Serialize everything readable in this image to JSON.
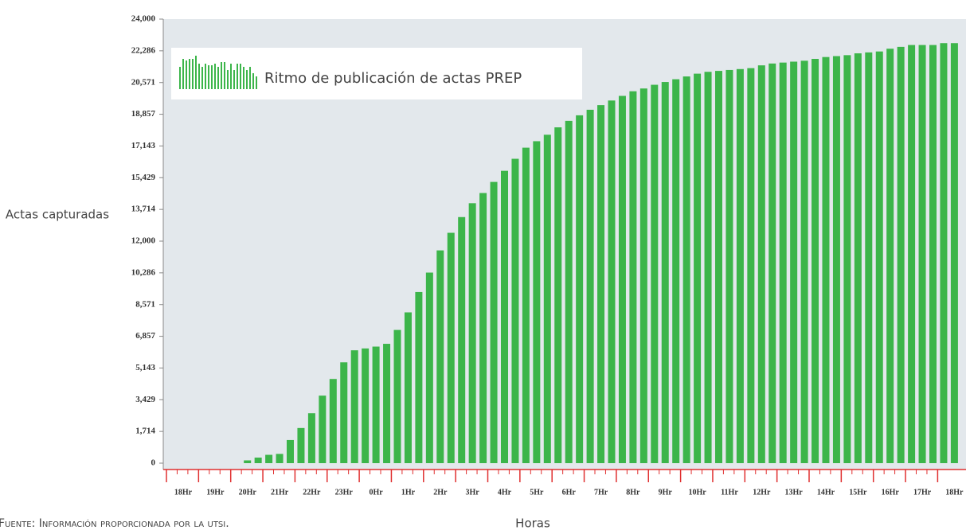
{
  "chart_data": {
    "type": "bar",
    "y_label": "Actas capturadas",
    "x_label": "Horas",
    "source": "Fuente: Información proporcionada por la utsi.",
    "categories": [
      "18Hr",
      null,
      null,
      "19Hr",
      null,
      null,
      "20Hr",
      null,
      null,
      "21Hr",
      null,
      null,
      "22Hr",
      null,
      null,
      "23Hr",
      null,
      null,
      "0Hr",
      null,
      null,
      "1Hr",
      null,
      null,
      "2Hr",
      null,
      null,
      "3Hr",
      null,
      null,
      "4Hr",
      null,
      null,
      "5Hr",
      null,
      null,
      "6Hr",
      null,
      null,
      "7Hr",
      null,
      null,
      "8Hr",
      null,
      null,
      "9Hr",
      null,
      null,
      "10Hr",
      null,
      null,
      "11Hr",
      null,
      null,
      "12Hr",
      null,
      null,
      "13Hr",
      null,
      null,
      "14Hr",
      null,
      null,
      "15Hr",
      null,
      null,
      "16Hr",
      null,
      null,
      "17Hr",
      null,
      null,
      "18Hr"
    ],
    "series": [
      {
        "name": "Ritmo de publicación de actas PREP",
        "color": "#3cb54a",
        "values": [
          null,
          null,
          null,
          null,
          null,
          null,
          150,
          300,
          450,
          500,
          1250,
          1900,
          2700,
          3650,
          4550,
          5450,
          6100,
          6200,
          6300,
          6450,
          7200,
          8150,
          9250,
          10300,
          11500,
          12450,
          13300,
          14050,
          14600,
          15200,
          15800,
          16450,
          17050,
          17400,
          17750,
          18150,
          18500,
          18800,
          19100,
          19350,
          19600,
          19850,
          20100,
          20250,
          20450,
          20600,
          20750,
          20900,
          21050,
          21150,
          21200,
          21250,
          21300,
          21350,
          21500,
          21600,
          21650,
          21700,
          21750,
          21850,
          21950,
          22000,
          22050,
          22150,
          22200,
          22250,
          22400,
          22500,
          22600,
          22600,
          22600,
          22700,
          22700
        ]
      }
    ],
    "ylim": [
      0,
      24000
    ],
    "yticks": [
      0,
      {
        "value": 1714,
        "label": "1,714"
      },
      {
        "value": 3429,
        "label": "3,429"
      },
      {
        "value": 5143,
        "label": "5,143"
      },
      {
        "value": 6857,
        "label": "6,857"
      },
      {
        "value": 8571,
        "label": "8,571"
      },
      {
        "value": 10286,
        "label": "10,286"
      },
      {
        "value": 12000,
        "label": "12,000"
      },
      {
        "value": 13714,
        "label": "13,714"
      },
      {
        "value": 15429,
        "label": "15,429"
      },
      {
        "value": 17143,
        "label": "17,143"
      },
      {
        "value": 18857,
        "label": "18,857"
      },
      {
        "value": 20571,
        "label": "20,571"
      },
      {
        "value": 22286,
        "label": "22,286"
      },
      {
        "value": 24000,
        "label": "24,000"
      }
    ],
    "legend": "top-left"
  }
}
